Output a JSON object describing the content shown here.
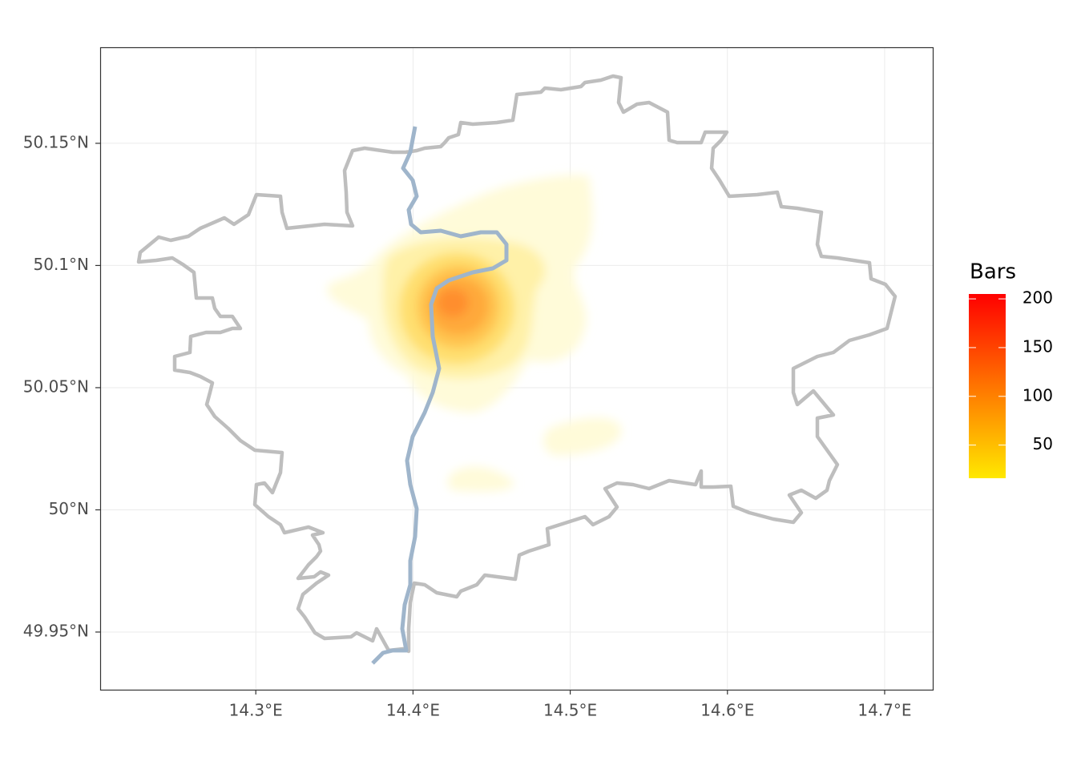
{
  "chart_data": {
    "type": "density_map",
    "xlim": [
      14.201,
      14.7306
    ],
    "ylim": [
      49.9264,
      50.1893
    ],
    "xticks": [
      {
        "value": 14.3,
        "label": "14.3°E"
      },
      {
        "value": 14.4,
        "label": "14.4°E"
      },
      {
        "value": 14.5,
        "label": "14.5°E"
      },
      {
        "value": 14.6,
        "label": "14.6°E"
      },
      {
        "value": 14.7,
        "label": "14.7°E"
      }
    ],
    "yticks": [
      {
        "value": 49.95,
        "label": "49.95°N"
      },
      {
        "value": 50,
        "label": "50°N"
      },
      {
        "value": 50.05,
        "label": "50.05°N"
      },
      {
        "value": 50.1,
        "label": "50.1°N"
      },
      {
        "value": 50.15,
        "label": "50.15°N"
      }
    ],
    "grid": true,
    "legend": {
      "title": "Bars",
      "lim": [
        16,
        205
      ],
      "ticks": [
        50,
        100,
        150,
        200
      ],
      "colors": [
        "#FFE800",
        "#FF0000"
      ]
    }
  }
}
